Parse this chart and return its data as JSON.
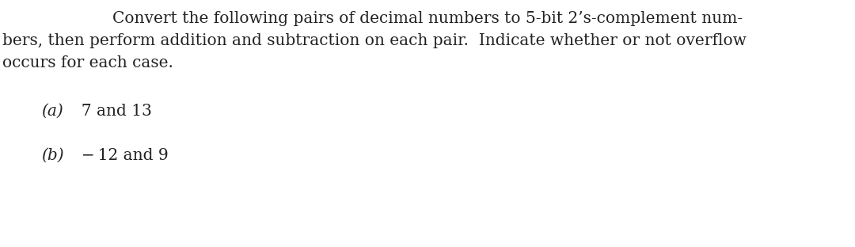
{
  "background_color": "#ffffff",
  "figsize": [
    10.8,
    3.12
  ],
  "dpi": 100,
  "line1": "Convert the following pairs of decimal numbers to 5-bit 2’s-complement num-",
  "line2": "bers, then perform addition and subtraction on each pair.  Indicate whether or not overflow",
  "line3": "occurs for each case.",
  "item_a_label": "(a)",
  "item_a_rest": "  7 and 13",
  "item_b_label": "(b)",
  "item_b_rest": "  − 12 and 9",
  "font_size": 14.5,
  "text_color": "#222222",
  "font_family": "DejaVu Serif"
}
